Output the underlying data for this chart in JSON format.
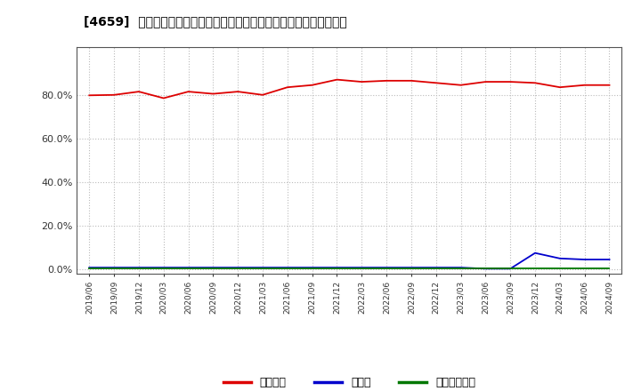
{
  "title": "[4659]  自己資本、のれん、繰延税金資産の総資産に対する比率の推移",
  "x_labels": [
    "2019/06",
    "2019/09",
    "2019/12",
    "2020/03",
    "2020/06",
    "2020/09",
    "2020/12",
    "2021/03",
    "2021/06",
    "2021/09",
    "2021/12",
    "2022/03",
    "2022/06",
    "2022/09",
    "2022/12",
    "2023/03",
    "2023/06",
    "2023/09",
    "2023/12",
    "2024/03",
    "2024/06",
    "2024/09"
  ],
  "equity_ratio": [
    79.8,
    80.0,
    81.5,
    78.5,
    81.5,
    80.5,
    81.5,
    80.0,
    83.5,
    84.5,
    87.0,
    86.0,
    86.5,
    86.5,
    85.5,
    84.5,
    86.0,
    86.0,
    85.5,
    83.5,
    84.5,
    84.5
  ],
  "goodwill_ratio": [
    0.8,
    0.8,
    0.8,
    0.8,
    0.8,
    0.8,
    0.8,
    0.8,
    0.8,
    0.8,
    0.8,
    0.8,
    0.8,
    0.8,
    0.8,
    0.8,
    0.3,
    0.3,
    7.5,
    5.0,
    4.5,
    4.5
  ],
  "deferred_tax_ratio": [
    0.3,
    0.3,
    0.3,
    0.3,
    0.3,
    0.3,
    0.3,
    0.3,
    0.3,
    0.3,
    0.3,
    0.3,
    0.3,
    0.3,
    0.3,
    0.3,
    0.3,
    0.3,
    0.3,
    0.3,
    0.3,
    0.3
  ],
  "equity_color": "#dd0000",
  "goodwill_color": "#0000cc",
  "deferred_tax_color": "#007700",
  "bg_color": "#ffffff",
  "plot_bg_color": "#ffffff",
  "grid_color": "#bbbbbb",
  "ylim": [
    -2,
    102
  ],
  "yticks": [
    0.0,
    20.0,
    40.0,
    60.0,
    80.0
  ],
  "legend_labels": [
    "自己資本",
    "のれん",
    "繰延税金資産"
  ]
}
